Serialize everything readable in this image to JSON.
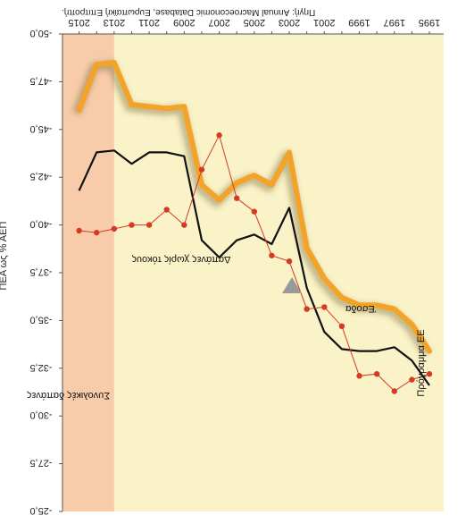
{
  "chart_data": {
    "type": "line",
    "title": "",
    "source": "Πηγή: Annual Macroeconomic Database, Ευρωπαϊκή Επιτροπή.",
    "ylabel": "ΠΕΑ ως % ΑΕΠ",
    "xlabel": "",
    "orientation_note": "The whole figure is printed upside-down; it is rendered rotated 180 degrees as in the original.",
    "x_tick_labels": [
      "1995",
      "1997",
      "1999",
      "2001",
      "2003",
      "2005",
      "2007",
      "2009",
      "2011",
      "2013",
      "2015"
    ],
    "y_ticks": [
      -50.0,
      -47.5,
      -45.0,
      -42.5,
      -40.0,
      -37.5,
      -35.0,
      -32.5,
      -30.0,
      -27.5,
      -25.0
    ],
    "y_tick_labels": [
      "-50,0",
      "-47,5",
      "-45,0",
      "-42,5",
      "-40,0",
      "-37,5",
      "-35,0",
      "-32,5",
      "-30,0",
      "-27,5",
      "-25,0"
    ],
    "xlim": [
      1995,
      2016
    ],
    "ylim": [
      -50,
      -25
    ],
    "x": [
      1995,
      1996,
      1997,
      1998,
      1999,
      2000,
      2001,
      2002,
      2003,
      2004,
      2005,
      2006,
      2007,
      2008,
      2009,
      2010,
      2011,
      2012,
      2013,
      2014,
      2015
    ],
    "series": [
      {
        "name": "Συνολικές δαπάνες",
        "color": "#f3a428",
        "style": "thick",
        "values": [
          -33.4,
          -34.8,
          -35.6,
          -35.8,
          -35.8,
          -36.2,
          -37.2,
          -38.8,
          -43.8,
          -42.1,
          -42.6,
          -42.2,
          -41.3,
          -42.1,
          -46.2,
          -46.1,
          -46.2,
          -46.3,
          -48.5,
          -48.4,
          -46.0
        ]
      },
      {
        "name": "Δαπάνες χωρίς τόκους",
        "color": "#111111",
        "style": "thin",
        "values": [
          -31.6,
          -32.9,
          -33.6,
          -33.4,
          -33.4,
          -33.5,
          -34.4,
          -36.7,
          -40.9,
          -39.0,
          -39.5,
          -39.2,
          -38.3,
          -39.2,
          -43.6,
          -43.8,
          -43.8,
          -43.2,
          -43.9,
          -43.8,
          -41.8
        ]
      },
      {
        "name": "Έσοδα",
        "color": "#d43a24",
        "style": "markers",
        "values": [
          -32.2,
          -31.9,
          -31.3,
          -32.2,
          -32.1,
          -34.7,
          -35.7,
          -35.6,
          -38.1,
          -38.4,
          -40.7,
          -41.4,
          -44.7,
          -42.9,
          -40.0,
          -40.8,
          -40.0,
          -40.0,
          -39.8,
          -39.6,
          -39.7
        ]
      }
    ],
    "annotations": {
      "shaded_label": "Πρόγραμμα ΕΕ",
      "shaded_range": [
        2013,
        2015
      ],
      "label_total": "Συνολικές δαπάνες",
      "label_noninterest": "Δαπάνες χωρίς τόκους",
      "label_revenue": "Έσοδα"
    },
    "colors": {
      "plot_background": "#fbf3c8",
      "shaded_background": "#f8ccaa",
      "axis_line": "#555555"
    },
    "grid": false,
    "legend": "none (series labelled directly on the chart)"
  }
}
